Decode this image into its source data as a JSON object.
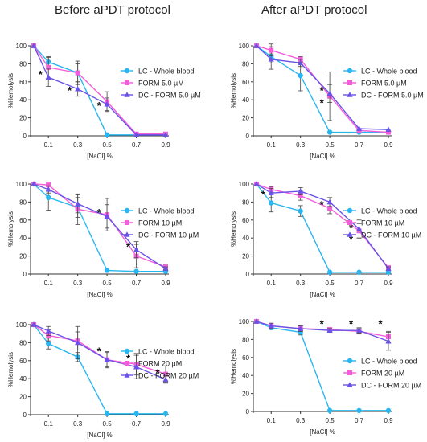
{
  "column_titles": [
    "Before aPDT protocol",
    "After aPDT protocol"
  ],
  "colors": {
    "LC": "#29b6f0",
    "FORM": "#f25dd9",
    "DC": "#6a52e6"
  },
  "chart_data": [
    {
      "type": "line",
      "xlabel": "[NaCl] %",
      "ylabel": "%Hemolysis",
      "x": [
        0.0,
        0.1,
        0.3,
        0.5,
        0.7,
        0.9
      ],
      "xticks": [
        "0.1",
        "0.3",
        "0.5",
        "0.7",
        "0.9"
      ],
      "yticks": [
        0,
        20,
        40,
        60,
        80,
        100
      ],
      "ylim": [
        0,
        100
      ],
      "series": [
        {
          "name": "LC - Whole blood",
          "values": [
            100,
            82,
            70,
            1,
            1,
            1
          ],
          "err": [
            0,
            5,
            10,
            1,
            0,
            0
          ]
        },
        {
          "name": "FORM 5.0 µM",
          "values": [
            100,
            76,
            70,
            38,
            2,
            2
          ],
          "err": [
            0,
            12,
            13,
            11,
            0,
            0
          ]
        },
        {
          "name": "DC - FORM 5.0 µM",
          "values": [
            100,
            65,
            52,
            35,
            1,
            1
          ],
          "err": [
            0,
            10,
            8,
            7,
            0,
            0
          ]
        }
      ],
      "annotations": [
        {
          "x": 0.1,
          "y": 68,
          "text": "*"
        },
        {
          "x": 0.3,
          "y": 50,
          "text": "*"
        },
        {
          "x": 0.5,
          "y": 33,
          "text": "*"
        }
      ]
    },
    {
      "type": "line",
      "xlabel": "[NaCl] %",
      "ylabel": "%Hemolysis",
      "x": [
        0.0,
        0.1,
        0.3,
        0.5,
        0.7,
        0.9
      ],
      "xticks": [
        "0.1",
        "0.3",
        "0.5",
        "0.7",
        "0.9"
      ],
      "yticks": [
        0,
        20,
        40,
        60,
        80,
        100
      ],
      "ylim": [
        0,
        100
      ],
      "series": [
        {
          "name": "LC - Whole blood",
          "values": [
            100,
            88,
            67,
            4,
            4,
            4
          ],
          "err": [
            0,
            14,
            17,
            0,
            0,
            0
          ]
        },
        {
          "name": "FORM 5.0 µM",
          "values": [
            100,
            95,
            85,
            44,
            6,
            4
          ],
          "err": [
            0,
            4,
            3,
            27,
            0,
            0
          ]
        },
        {
          "name": "DC - FORM 5.0 µM",
          "values": [
            100,
            85,
            81,
            47,
            8,
            7
          ],
          "err": [
            0,
            4,
            4,
            10,
            0,
            0
          ]
        }
      ],
      "annotations": [
        {
          "x": 0.5,
          "y": 50,
          "text": "*"
        },
        {
          "x": 0.5,
          "y": 36,
          "text": "*"
        }
      ]
    },
    {
      "type": "line",
      "xlabel": "[NaCl] %",
      "ylabel": "%Hemolysis",
      "x": [
        0.0,
        0.1,
        0.3,
        0.5,
        0.7,
        0.9
      ],
      "xticks": [
        "0.1",
        "0.3",
        "0.5",
        "0.7",
        "0.9"
      ],
      "yticks": [
        0,
        20,
        40,
        60,
        80,
        100
      ],
      "ylim": [
        0,
        100
      ],
      "series": [
        {
          "name": "LC - Whole blood",
          "values": [
            100,
            85,
            74,
            4,
            3,
            3
          ],
          "err": [
            0,
            14,
            11,
            0,
            0,
            0
          ]
        },
        {
          "name": "FORM 10 µM",
          "values": [
            100,
            99,
            72,
            66,
            20,
            8
          ],
          "err": [
            0,
            2,
            17,
            18,
            13,
            3
          ]
        },
        {
          "name": "DC - FORM 10 µM",
          "values": [
            100,
            94,
            78,
            64,
            27,
            6
          ],
          "err": [
            0,
            4,
            10,
            13,
            9,
            2
          ]
        }
      ],
      "annotations": [
        {
          "x": 0.5,
          "y": 68,
          "text": "*"
        },
        {
          "x": 0.7,
          "y": 30,
          "text": "*"
        }
      ]
    },
    {
      "type": "line",
      "xlabel": "[NaCl] %",
      "ylabel": "%Hemolysis",
      "x": [
        0.0,
        0.1,
        0.3,
        0.5,
        0.7,
        0.9
      ],
      "xticks": [
        "0.1",
        "0.3",
        "0.5",
        "0.7",
        "0.9"
      ],
      "yticks": [
        0,
        20,
        40,
        60,
        80,
        100
      ],
      "ylim": [
        0,
        100
      ],
      "series": [
        {
          "name": "LC - Whole blood",
          "values": [
            100,
            79,
            70,
            2,
            2,
            2
          ],
          "err": [
            0,
            10,
            6,
            0,
            0,
            0
          ]
        },
        {
          "name": "FORM 10 µM",
          "values": [
            100,
            94,
            87,
            73,
            48,
            7
          ],
          "err": [
            0,
            3,
            5,
            6,
            8,
            2
          ]
        },
        {
          "name": "DC - FORM 10 µM",
          "values": [
            100,
            90,
            92,
            80,
            50,
            6
          ],
          "err": [
            0,
            5,
            4,
            5,
            10,
            2
          ]
        }
      ],
      "annotations": [
        {
          "x": 0.1,
          "y": 88,
          "text": "*"
        },
        {
          "x": 0.5,
          "y": 77,
          "text": "*"
        },
        {
          "x": 0.7,
          "y": 51,
          "text": "*"
        },
        {
          "x": 0.7,
          "y": 38,
          "text": "*"
        }
      ]
    },
    {
      "type": "line",
      "xlabel": "[NaCl] %",
      "ylabel": "%Hemolysis",
      "x": [
        0.0,
        0.1,
        0.3,
        0.5,
        0.7,
        0.9
      ],
      "xticks": [
        "0.1",
        "0.3",
        "0.5",
        "0.7",
        "0.9"
      ],
      "yticks": [
        0,
        20,
        40,
        60,
        80,
        100
      ],
      "ylim": [
        0,
        100
      ],
      "series": [
        {
          "name": "LC - Whole blood",
          "values": [
            100,
            79,
            64,
            1,
            1,
            1
          ],
          "err": [
            0,
            6,
            5,
            0,
            0,
            0
          ]
        },
        {
          "name": "FORM 20 µM",
          "values": [
            100,
            88,
            82,
            61,
            56,
            45
          ],
          "err": [
            0,
            6,
            10,
            9,
            12,
            9
          ]
        },
        {
          "name": "DC - FORM 20 µM",
          "values": [
            100,
            93,
            80,
            61,
            53,
            39
          ],
          "err": [
            0,
            5,
            18,
            8,
            13,
            4
          ]
        }
      ],
      "annotations": [
        {
          "x": 0.5,
          "y": 70,
          "text": "*"
        },
        {
          "x": 0.7,
          "y": 62,
          "text": "*"
        },
        {
          "x": 0.9,
          "y": 46,
          "text": "*"
        }
      ]
    },
    {
      "type": "line",
      "xlabel": "[NaCl] %",
      "ylabel": "%Hemolysis",
      "x": [
        0.0,
        0.1,
        0.3,
        0.5,
        0.7,
        0.9
      ],
      "xticks": [
        "0.1",
        "0.3",
        "0.5",
        "0.7",
        "0.9"
      ],
      "yticks": [
        0,
        20,
        40,
        60,
        80,
        100
      ],
      "ylim": [
        0,
        100
      ],
      "series": [
        {
          "name": "LC - Whole blood",
          "values": [
            100,
            93,
            88,
            1,
            1,
            1
          ],
          "err": [
            0,
            2,
            3,
            0,
            0,
            0
          ]
        },
        {
          "name": "FORM 20 µM",
          "values": [
            100,
            95,
            92,
            91,
            89,
            83
          ],
          "err": [
            0,
            3,
            3,
            2,
            3,
            6
          ]
        },
        {
          "name": "DC - FORM 20 µM",
          "values": [
            100,
            95,
            92,
            90,
            90,
            78
          ],
          "err": [
            0,
            3,
            3,
            2,
            3,
            10
          ]
        }
      ],
      "annotations": [
        {
          "x": 0.5,
          "y": 97,
          "text": "*"
        },
        {
          "x": 0.7,
          "y": 97,
          "text": "*"
        },
        {
          "x": 0.9,
          "y": 97,
          "text": "*"
        }
      ]
    }
  ]
}
